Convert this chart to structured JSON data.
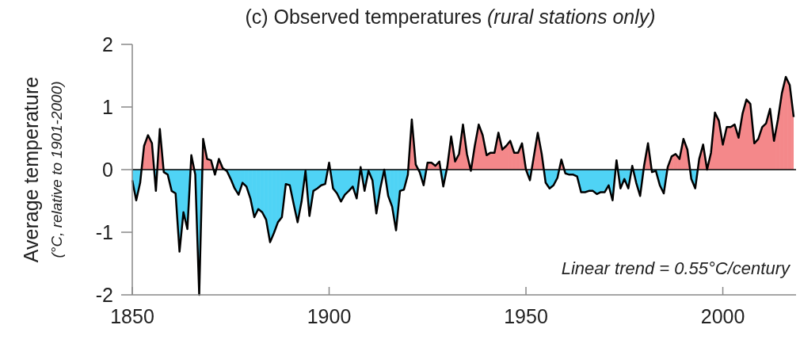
{
  "chart_data": {
    "type": "area",
    "title": "(c) Observed temperatures (rural stations only)",
    "ylabel": "Average temperature (°C, relative to 1901-2000)",
    "x": [
      1850,
      1851,
      1852,
      1853,
      1854,
      1855,
      1856,
      1857,
      1858,
      1859,
      1860,
      1861,
      1862,
      1863,
      1864,
      1865,
      1866,
      1867,
      1868,
      1869,
      1870,
      1871,
      1872,
      1873,
      1874,
      1875,
      1876,
      1877,
      1878,
      1879,
      1880,
      1881,
      1882,
      1883,
      1884,
      1885,
      1886,
      1887,
      1888,
      1889,
      1890,
      1891,
      1892,
      1893,
      1894,
      1895,
      1896,
      1897,
      1898,
      1899,
      1900,
      1901,
      1902,
      1903,
      1904,
      1905,
      1906,
      1907,
      1908,
      1909,
      1910,
      1911,
      1912,
      1913,
      1914,
      1915,
      1916,
      1917,
      1918,
      1919,
      1920,
      1921,
      1922,
      1923,
      1924,
      1925,
      1926,
      1927,
      1928,
      1929,
      1930,
      1931,
      1932,
      1933,
      1934,
      1935,
      1936,
      1937,
      1938,
      1939,
      1940,
      1941,
      1942,
      1943,
      1944,
      1945,
      1946,
      1947,
      1948,
      1949,
      1950,
      1951,
      1952,
      1953,
      1954,
      1955,
      1956,
      1957,
      1958,
      1959,
      1960,
      1961,
      1962,
      1963,
      1964,
      1965,
      1966,
      1967,
      1968,
      1969,
      1970,
      1971,
      1972,
      1973,
      1974,
      1975,
      1976,
      1977,
      1978,
      1979,
      1980,
      1981,
      1982,
      1983,
      1984,
      1985,
      1986,
      1987,
      1988,
      1989,
      1990,
      1991,
      1992,
      1993,
      1994,
      1995,
      1996,
      1997,
      1998,
      1999,
      2000,
      2001,
      2002,
      2003,
      2004,
      2005,
      2006,
      2007,
      2008,
      2009,
      2010,
      2011,
      2012,
      2013,
      2014,
      2015,
      2016,
      2017,
      2018
    ],
    "series": [
      {
        "color": "#000000",
        "colors": [
          "#4fd3f5",
          "#4fd3f5",
          "#4fd3f5",
          "#f4888a",
          "#f4888a",
          "#f4888a",
          "#4fd3f5",
          "#f4888a",
          "#4fd3f5",
          "#4fd3f5",
          "#4fd3f5",
          "#4fd3f5",
          "#4fd3f5",
          "#4fd3f5",
          "#4fd3f5",
          "#f4888a",
          "#4fd3f5",
          "#4fd3f5",
          "#f4888a",
          "#f4888a",
          "#f4888a",
          "#4fd3f5",
          "#f4888a",
          "#f4888a",
          "#4fd3f5",
          "#4fd3f5",
          "#4fd3f5",
          "#4fd3f5",
          "#4fd3f5",
          "#4fd3f5",
          "#4fd3f5",
          "#4fd3f5",
          "#4fd3f5",
          "#4fd3f5",
          "#4fd3f5",
          "#4fd3f5",
          "#4fd3f5",
          "#4fd3f5",
          "#4fd3f5",
          "#4fd3f5",
          "#4fd3f5",
          "#4fd3f5",
          "#4fd3f5",
          "#4fd3f5",
          "#4fd3f5",
          "#4fd3f5",
          "#4fd3f5",
          "#4fd3f5",
          "#4fd3f5",
          "#4fd3f5",
          "#f4888a",
          "#4fd3f5",
          "#4fd3f5",
          "#4fd3f5",
          "#4fd3f5",
          "#4fd3f5",
          "#4fd3f5",
          "#4fd3f5",
          "#f4888a",
          "#4fd3f5",
          "#4fd3f5",
          "#4fd3f5",
          "#4fd3f5",
          "#4fd3f5",
          "#4fd3f5",
          "#4fd3f5",
          "#4fd3f5",
          "#4fd3f5",
          "#4fd3f5",
          "#4fd3f5",
          "#4fd3f5",
          "#f4888a",
          "#f4888a",
          "#4fd3f5",
          "#4fd3f5",
          "#f4888a",
          "#f4888a",
          "#f4888a",
          "#f4888a",
          "#4fd3f5",
          "#f4888a",
          "#f4888a",
          "#f4888a",
          "#f4888a",
          "#f4888a",
          "#f4888a",
          "#4fd3f5",
          "#f4888a",
          "#f4888a",
          "#f4888a",
          "#f4888a",
          "#f4888a",
          "#f4888a",
          "#f4888a",
          "#f4888a",
          "#f4888a",
          "#f4888a",
          "#f4888a",
          "#f4888a",
          "#f4888a",
          "#f4888a",
          "#4fd3f5",
          "#f4888a",
          "#f4888a",
          "#f4888a",
          "#4fd3f5",
          "#4fd3f5",
          "#4fd3f5",
          "#4fd3f5",
          "#f4888a",
          "#4fd3f5",
          "#4fd3f5",
          "#4fd3f5",
          "#4fd3f5",
          "#4fd3f5",
          "#4fd3f5",
          "#4fd3f5",
          "#4fd3f5",
          "#4fd3f5",
          "#4fd3f5",
          "#4fd3f5",
          "#4fd3f5",
          "#4fd3f5",
          "#f4888a",
          "#4fd3f5",
          "#4fd3f5",
          "#4fd3f5",
          "#f4888a",
          "#4fd3f5",
          "#4fd3f5",
          "#f4888a",
          "#f4888a",
          "#4fd3f5",
          "#4fd3f5",
          "#4fd3f5",
          "#4fd3f5",
          "#f4888a",
          "#f4888a",
          "#f4888a",
          "#f4888a",
          "#f4888a",
          "#f4888a",
          "#4fd3f5",
          "#4fd3f5",
          "#f4888a",
          "#f4888a",
          "#f4888a",
          "#f4888a",
          "#f4888a",
          "#f4888a",
          "#f4888a",
          "#f4888a",
          "#f4888a",
          "#f4888a",
          "#f4888a",
          "#f4888a",
          "#f4888a",
          "#f4888a",
          "#f4888a",
          "#f4888a",
          "#f4888a",
          "#f4888a",
          "#f4888a",
          "#f4888a",
          "#f4888a",
          "#f4888a",
          "#f4888a",
          "#f4888a",
          "#f4888a"
        ],
        "values": [
          -0.17,
          -0.49,
          -0.21,
          0.38,
          0.55,
          0.42,
          -0.34,
          0.65,
          -0.04,
          -0.08,
          -0.34,
          -0.38,
          -1.31,
          -0.68,
          -0.95,
          0.23,
          -0.08,
          -2.0,
          0.49,
          0.17,
          0.15,
          -0.08,
          0.17,
          0.02,
          -0.02,
          -0.15,
          -0.3,
          -0.4,
          -0.21,
          -0.27,
          -0.46,
          -0.76,
          -0.63,
          -0.68,
          -0.8,
          -1.16,
          -1.01,
          -0.84,
          -0.76,
          -0.23,
          -0.25,
          -0.55,
          -0.84,
          -0.51,
          -0.02,
          -0.74,
          -0.34,
          -0.3,
          -0.25,
          -0.23,
          0.11,
          -0.3,
          -0.38,
          -0.51,
          -0.4,
          -0.34,
          -0.27,
          -0.46,
          0.04,
          -0.34,
          -0.02,
          -0.17,
          -0.7,
          -0.3,
          0.0,
          -0.42,
          -0.59,
          -0.97,
          -0.34,
          -0.32,
          -0.08,
          0.8,
          0.08,
          -0.04,
          -0.25,
          0.11,
          0.11,
          0.06,
          0.13,
          -0.27,
          0.04,
          0.53,
          0.13,
          0.25,
          0.72,
          0.25,
          -0.02,
          0.38,
          0.72,
          0.55,
          0.23,
          0.27,
          0.27,
          0.59,
          0.32,
          0.38,
          0.46,
          0.27,
          0.27,
          0.42,
          0.0,
          -0.17,
          0.21,
          0.59,
          0.25,
          -0.21,
          -0.3,
          -0.25,
          -0.13,
          0.16,
          -0.06,
          -0.08,
          -0.08,
          -0.11,
          -0.36,
          -0.36,
          -0.34,
          -0.34,
          -0.39,
          -0.36,
          -0.36,
          -0.25,
          -0.49,
          0.15,
          -0.3,
          -0.15,
          -0.3,
          0.06,
          -0.21,
          -0.42,
          0.06,
          0.42,
          -0.04,
          -0.02,
          -0.25,
          -0.38,
          0.04,
          0.21,
          0.25,
          0.17,
          0.49,
          0.32,
          -0.15,
          -0.3,
          0.17,
          0.4,
          0.0,
          0.27,
          0.91,
          0.78,
          0.4,
          0.68,
          0.68,
          0.72,
          0.51,
          0.89,
          1.12,
          1.05,
          0.42,
          0.49,
          0.68,
          0.74,
          0.97,
          0.46,
          0.8,
          1.22,
          1.48,
          1.35,
          0.84
        ]
      }
    ],
    "xlim": [
      1850,
      2018.6
    ],
    "xticks": [
      1850,
      1900,
      1950,
      2000
    ],
    "ylim": [
      -2,
      2
    ],
    "yticks": [
      -2,
      -1,
      0,
      1,
      2
    ],
    "ref_lines": [
      {
        "axis": "y",
        "value": 0,
        "color": "#000000"
      }
    ],
    "annotations": [
      "Linear trend = 0.55°C/century"
    ]
  }
}
